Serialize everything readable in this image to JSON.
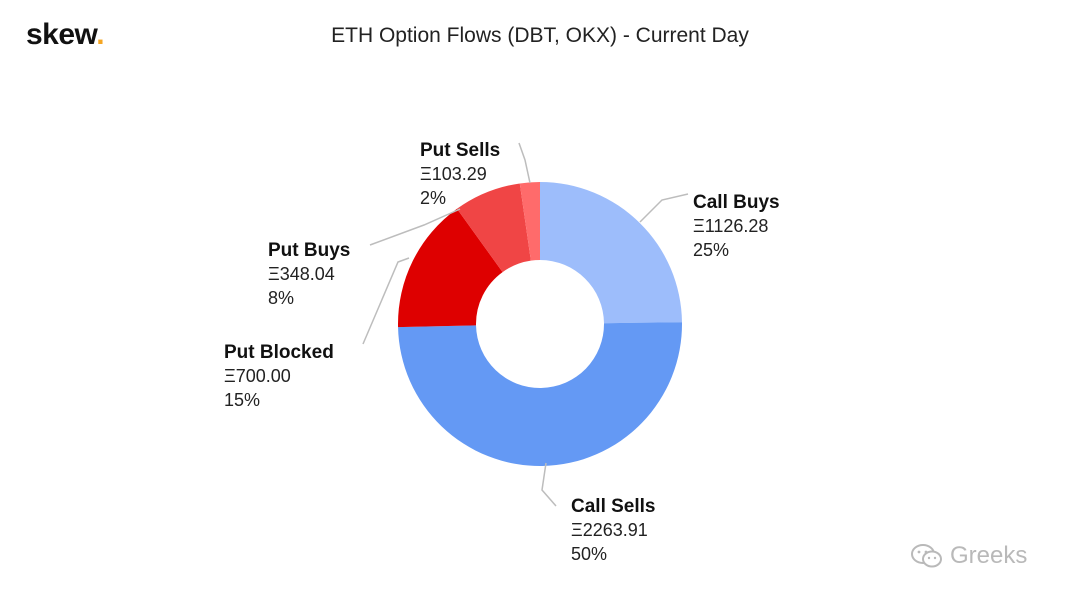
{
  "brand": {
    "name": "skew",
    "dot": "."
  },
  "watermark": {
    "text": "Greeks",
    "icon": "wechat-icon"
  },
  "chart_data": {
    "type": "pie",
    "variant": "donut",
    "title": "ETH Option Flows (DBT, OKX) - Current Day",
    "currency_symbol": "Ξ",
    "slices": [
      {
        "label": "Call Buys",
        "value": 1126.28,
        "value_text": "Ξ1126.28",
        "percent_text": "25%",
        "color": "#9dbdfb"
      },
      {
        "label": "Call Sells",
        "value": 2263.91,
        "value_text": "Ξ2263.91",
        "percent_text": "50%",
        "color": "#6499f4"
      },
      {
        "label": "Put Blocked",
        "value": 700.0,
        "value_text": "Ξ700.00",
        "percent_text": "15%",
        "color": "#de0000"
      },
      {
        "label": "Put Buys",
        "value": 348.04,
        "value_text": "Ξ348.04",
        "percent_text": "8%",
        "color": "#f04545"
      },
      {
        "label": "Put Sells",
        "value": 103.29,
        "value_text": "Ξ103.29",
        "percent_text": "2%",
        "color": "#ff6b6b"
      }
    ],
    "leader_line_color": "#bdbdbd"
  }
}
